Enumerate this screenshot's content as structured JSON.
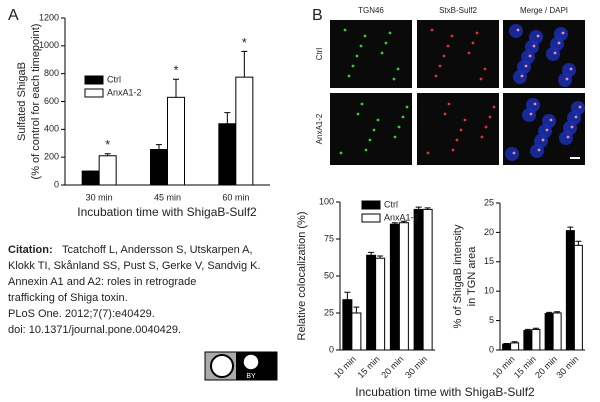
{
  "chart_data": [
    {
      "type": "bar",
      "panel": "A",
      "categories": [
        "30 min",
        "45 min",
        "60 min"
      ],
      "series": [
        {
          "name": "Ctrl",
          "color": "#000000",
          "values": [
            100,
            255,
            440
          ],
          "errors": [
            0,
            35,
            80
          ]
        },
        {
          "name": "AnxA1-2",
          "color": "#ffffff",
          "values": [
            210,
            630,
            775
          ],
          "errors": [
            15,
            130,
            185
          ]
        }
      ],
      "significance": [
        "*",
        "*",
        "*"
      ],
      "ylim": [
        0,
        1200
      ],
      "yticks": [
        0,
        200,
        400,
        600,
        800,
        1000,
        1200
      ],
      "ylabel": [
        "Sulfated ShigaB",
        "(% of control for each timepoint)"
      ],
      "xlabel": "Incubation time with ShigaB-Sulf2"
    },
    {
      "type": "bar",
      "panel": "B",
      "categories": [
        "10 min",
        "15 min",
        "20 min",
        "30 min"
      ],
      "series": [
        {
          "name": "Ctrl",
          "color": "#000000",
          "values": [
            34,
            64,
            85,
            95
          ],
          "errors": [
            5,
            2,
            1,
            1.5
          ]
        },
        {
          "name": "AnxA1-2",
          "color": "#ffffff",
          "values": [
            25,
            62,
            86,
            95
          ],
          "errors": [
            4,
            1.5,
            1,
            1
          ]
        }
      ],
      "ylim": [
        0,
        100
      ],
      "yticks": [
        0,
        25,
        50,
        75,
        100
      ],
      "ylabel": [
        "Relative colocalization (%)"
      ]
    },
    {
      "type": "bar",
      "categories": [
        "10 min",
        "15 min",
        "20 min",
        "30 min"
      ],
      "series": [
        {
          "color": "#000000",
          "values": [
            1,
            3.3,
            6.2,
            20.3
          ],
          "errors": [
            0.1,
            0.2,
            0.2,
            0.6
          ]
        },
        {
          "color": "#ffffff",
          "values": [
            1.2,
            3.5,
            6.3,
            17.8
          ],
          "errors": [
            0.2,
            0.2,
            0.2,
            0.7
          ]
        }
      ],
      "ylim": [
        0,
        25
      ],
      "yticks": [
        0,
        5,
        10,
        15,
        20,
        25
      ],
      "ylabel": [
        "% of ShigaB intensity",
        "in TGN area"
      ],
      "xlabel": "Incubation time with ShigaB-Sulf2"
    }
  ],
  "micrographs": {
    "columns": [
      "TGN46",
      "StxB-Sulf2",
      "Merge / DAPI"
    ],
    "rows": [
      "Ctrl",
      "AnxA1-2"
    ]
  },
  "citation": {
    "label": "Citation:",
    "lines": [
      "Tcatchoff L, Andersson S, Utskarpen A,",
      "Klokk TI, Skånland SS, Pust S, Gerke V, Sandvig K.",
      "Annexin A1 and A2: roles in retrograde",
      "trafficking of Shiga toxin.",
      "PLoS One. 2012;7(7):e40429.",
      "doi: 10.1371/journal.pone.0040429."
    ]
  },
  "license": "BY"
}
